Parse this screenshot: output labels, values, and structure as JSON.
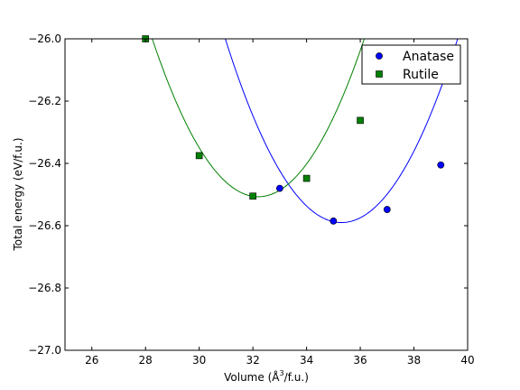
{
  "chart_data": {
    "type": "scatter",
    "title": "",
    "xlabel_main": "Volume (Å",
    "xlabel_sup": "3",
    "xlabel_rest": "/f.u.)",
    "ylabel": "Total energy (eV/f.u.)",
    "xlim": [
      25,
      40
    ],
    "ylim": [
      -27.0,
      -26.0
    ],
    "x_ticks": [
      26,
      28,
      30,
      32,
      34,
      36,
      38,
      40
    ],
    "y_ticks": [
      -27.0,
      -26.8,
      -26.6,
      -26.4,
      -26.2,
      -26.0
    ],
    "x_tick_labels": [
      "26",
      "28",
      "30",
      "32",
      "34",
      "36",
      "38",
      "40"
    ],
    "y_tick_labels": [
      "−27.0",
      "−26.8",
      "−26.6",
      "−26.4",
      "−26.2",
      "−26.0"
    ],
    "grid": false,
    "legend_position": "top-right",
    "series": [
      {
        "name": "Anatase",
        "marker": "circle",
        "color": "#0000ff",
        "points": [
          {
            "x": 33,
            "y": -26.48
          },
          {
            "x": 35,
            "y": -26.585
          },
          {
            "x": 37,
            "y": -26.548
          },
          {
            "x": 39,
            "y": -26.405
          }
        ],
        "fit": {
          "a": 0.0315,
          "x0": 35.3,
          "y0": -26.59
        }
      },
      {
        "name": "Rutile",
        "marker": "square",
        "color": "#008000",
        "points": [
          {
            "x": 28,
            "y": -26.0
          },
          {
            "x": 30,
            "y": -26.375
          },
          {
            "x": 32,
            "y": -26.505
          },
          {
            "x": 34,
            "y": -26.448
          },
          {
            "x": 36,
            "y": -26.262
          }
        ],
        "fit": {
          "a": 0.0325,
          "x0": 32.2,
          "y0": -26.507
        }
      }
    ]
  }
}
